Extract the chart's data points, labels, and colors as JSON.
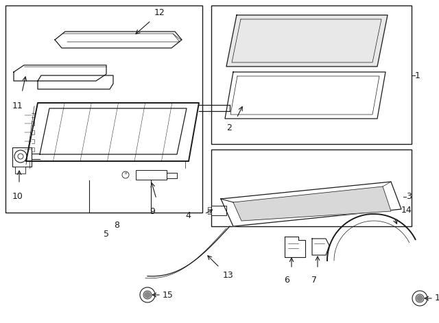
{
  "bg_color": "#ffffff",
  "line_color": "#1a1a1a",
  "fig_width": 6.4,
  "fig_height": 4.71,
  "dpi": 100
}
